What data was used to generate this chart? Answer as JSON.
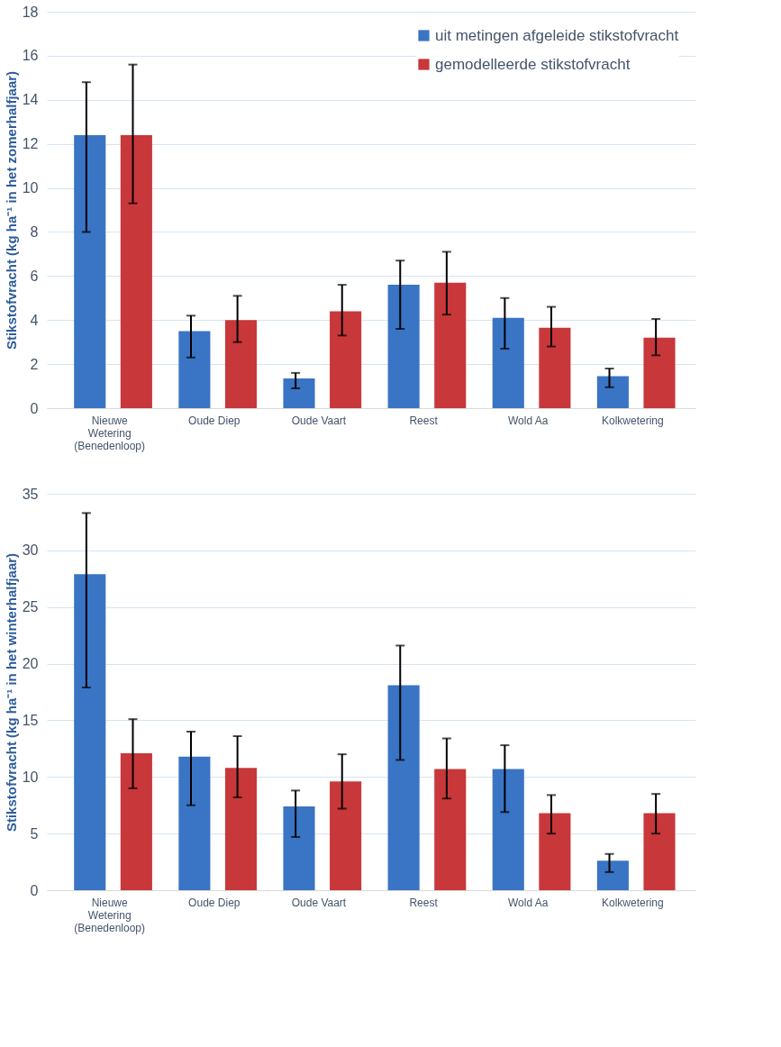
{
  "chart_data": [
    {
      "type": "bar",
      "ylabel": "Stikstofvracht (kg ha⁻¹ in het zomerhalfjaar)",
      "categories": [
        "Nieuwe Wetering (Benedenloop)",
        "Oude Diep",
        "Oude Vaart",
        "Reest",
        "Wold Aa",
        "Kolkwetering"
      ],
      "ylim": [
        0,
        18
      ],
      "yticks": [
        0,
        2,
        4,
        6,
        8,
        10,
        12,
        14,
        16,
        18
      ],
      "grid": "y",
      "legend": "top right",
      "series": [
        {
          "name": "uit metingen afgeleide stikstofvracht",
          "color": "#3a74c4",
          "values": [
            12.4,
            3.5,
            1.35,
            5.6,
            4.1,
            1.45
          ],
          "errors": [
            [
              8.0,
              14.8
            ],
            [
              2.3,
              4.2
            ],
            [
              0.9,
              1.6
            ],
            [
              3.6,
              6.7
            ],
            [
              2.7,
              5.0
            ],
            [
              0.95,
              1.8
            ]
          ]
        },
        {
          "name": "gemodelleerde stikstofvracht",
          "color": "#c8373a",
          "values": [
            12.4,
            4.0,
            4.4,
            5.7,
            3.65,
            3.2
          ],
          "errors": [
            [
              9.3,
              15.6
            ],
            [
              3.0,
              5.1
            ],
            [
              3.3,
              5.6
            ],
            [
              4.25,
              7.1
            ],
            [
              2.8,
              4.6
            ],
            [
              2.4,
              4.05
            ]
          ]
        }
      ]
    },
    {
      "type": "bar",
      "ylabel": "Stikstofvracht (kg ha⁻¹ in het winterhalfjaar)",
      "categories": [
        "Nieuwe Wetering (Benedenloop)",
        "Oude Diep",
        "Oude Vaart",
        "Reest",
        "Wold Aa",
        "Kolkwetering"
      ],
      "ylim": [
        0,
        35
      ],
      "yticks": [
        0,
        5,
        10,
        15,
        20,
        25,
        30,
        35
      ],
      "grid": "y",
      "legend": "top right",
      "series": [
        {
          "name": "uit metingen afgeleide stikstofvracht",
          "color": "#3a74c4",
          "values": [
            27.9,
            11.8,
            7.4,
            18.1,
            10.7,
            2.6
          ],
          "errors": [
            [
              17.9,
              33.3
            ],
            [
              7.5,
              14.0
            ],
            [
              4.7,
              8.8
            ],
            [
              11.5,
              21.6
            ],
            [
              6.9,
              12.8
            ],
            [
              1.6,
              3.2
            ]
          ]
        },
        {
          "name": "gemodelleerde stikstofvracht",
          "color": "#c8373a",
          "values": [
            12.1,
            10.8,
            9.6,
            10.7,
            6.8,
            6.8
          ],
          "errors": [
            [
              9.0,
              15.1
            ],
            [
              8.2,
              13.6
            ],
            [
              7.2,
              12.0
            ],
            [
              8.1,
              13.4
            ],
            [
              5.0,
              8.4
            ],
            [
              5.0,
              8.5
            ]
          ]
        }
      ]
    }
  ]
}
